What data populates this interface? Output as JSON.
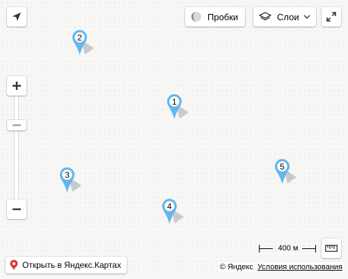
{
  "controls": {
    "geolocation_icon": "navigation-arrow-icon",
    "traffic_label": "Пробки",
    "layers_label": "Слои",
    "fullscreen_icon": "expand-icon",
    "zoom_in_icon": "plus-icon",
    "zoom_out_icon": "minus-icon",
    "ruler_icon": "ruler-icon"
  },
  "markers": [
    {
      "label": "2"
    },
    {
      "label": "1"
    },
    {
      "label": "3"
    },
    {
      "label": "5"
    },
    {
      "label": "4"
    }
  ],
  "marker_color": "#63b6ee",
  "scale": {
    "label": "400 м"
  },
  "open_in_maps": {
    "label": "Открыть в Яндекс.Картах",
    "icon_color": "#e03a2f"
  },
  "copyright": {
    "owner": "© Яндекс",
    "terms": "Условия использования"
  }
}
